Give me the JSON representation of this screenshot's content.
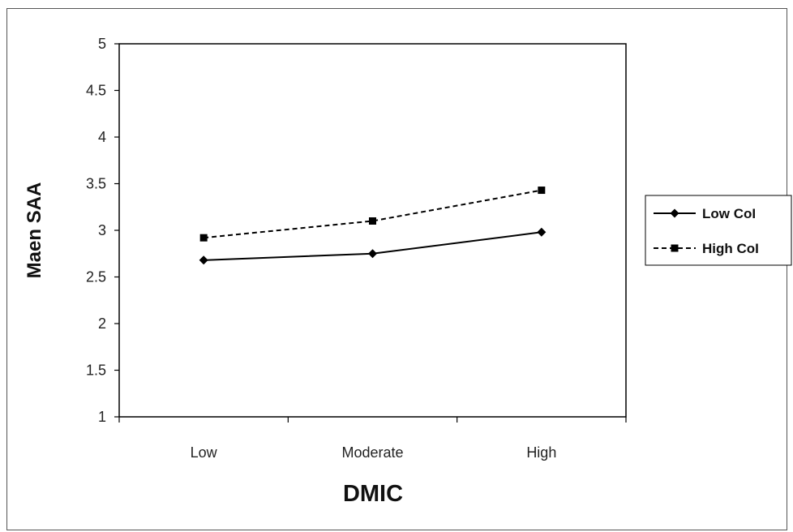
{
  "chart_data": {
    "type": "line",
    "title": "",
    "xlabel": "DMIC",
    "ylabel": "Maen SAA",
    "categories": [
      "Low",
      "Moderate",
      "High"
    ],
    "ylim": [
      1,
      5
    ],
    "yticks": [
      "1",
      "1.5",
      "2",
      "2.5",
      "3",
      "3.5",
      "4",
      "4.5",
      "5"
    ],
    "grid": false,
    "legend_position": "right",
    "series": [
      {
        "name": "Low CoI",
        "values": [
          2.68,
          2.75,
          2.98
        ],
        "line_style": "solid",
        "marker": "diamond",
        "color": "#000000"
      },
      {
        "name": "High CoI",
        "values": [
          2.92,
          3.1,
          3.43
        ],
        "line_style": "dashed",
        "marker": "square",
        "color": "#000000"
      }
    ]
  }
}
